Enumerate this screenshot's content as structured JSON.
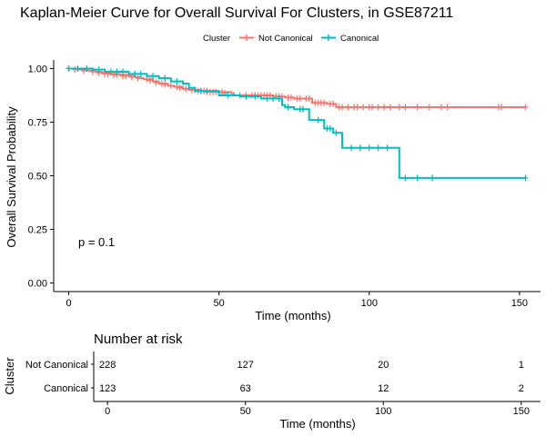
{
  "chart_data": [
    {
      "type": "line",
      "title": "Kaplan-Meier Curve for Overall Survival For Clusters, in GSE87211",
      "xlabel": "Time (months)",
      "ylabel": "Overall Survival Probability",
      "xlim": [
        -5,
        157
      ],
      "ylim": [
        -0.04,
        1.04
      ],
      "x_ticks": [
        0,
        50,
        100,
        150
      ],
      "y_ticks": [
        0.0,
        0.25,
        0.5,
        0.75,
        1.0
      ],
      "y_tick_labels": [
        "0.00",
        "0.25",
        "0.50",
        "0.75",
        "1.00"
      ],
      "grid": false,
      "legend": {
        "title": "Cluster",
        "position": "top",
        "entries": [
          {
            "name": "Not Canonical",
            "color": "#F8766D"
          },
          {
            "name": "Canonical",
            "color": "#00BFC4"
          }
        ]
      },
      "annotation": "p = 0.1",
      "series": [
        {
          "name": "Not Canonical",
          "color": "#F8766D",
          "steps": [
            [
              0,
              1.0
            ],
            [
              3,
              0.995
            ],
            [
              6,
              0.99
            ],
            [
              9,
              0.985
            ],
            [
              11,
              0.98
            ],
            [
              14,
              0.975
            ],
            [
              17,
              0.97
            ],
            [
              20,
              0.965
            ],
            [
              22,
              0.96
            ],
            [
              24,
              0.955
            ],
            [
              25,
              0.95
            ],
            [
              28,
              0.94
            ],
            [
              30,
              0.93
            ],
            [
              33,
              0.92
            ],
            [
              35,
              0.915
            ],
            [
              38,
              0.905
            ],
            [
              40,
              0.9
            ],
            [
              44,
              0.895
            ],
            [
              50,
              0.89
            ],
            [
              54,
              0.885
            ],
            [
              55,
              0.875
            ],
            [
              68,
              0.87
            ],
            [
              72,
              0.865
            ],
            [
              75,
              0.86
            ],
            [
              81,
              0.84
            ],
            [
              86,
              0.835
            ],
            [
              89,
              0.82
            ],
            [
              152,
              0.82
            ]
          ],
          "censored": [
            [
              0,
              1.0
            ],
            [
              2,
              0.995
            ],
            [
              5,
              0.99
            ],
            [
              8,
              0.985
            ],
            [
              10,
              0.98
            ],
            [
              12,
              0.975
            ],
            [
              13,
              0.975
            ],
            [
              15,
              0.97
            ],
            [
              16,
              0.97
            ],
            [
              18,
              0.965
            ],
            [
              19,
              0.965
            ],
            [
              21,
              0.96
            ],
            [
              23,
              0.955
            ],
            [
              26,
              0.95
            ],
            [
              27,
              0.945
            ],
            [
              29,
              0.935
            ],
            [
              31,
              0.93
            ],
            [
              32,
              0.925
            ],
            [
              34,
              0.92
            ],
            [
              36,
              0.915
            ],
            [
              37,
              0.91
            ],
            [
              39,
              0.905
            ],
            [
              41,
              0.9
            ],
            [
              42,
              0.9
            ],
            [
              43,
              0.895
            ],
            [
              45,
              0.895
            ],
            [
              46,
              0.89
            ],
            [
              47,
              0.89
            ],
            [
              48,
              0.89
            ],
            [
              49,
              0.89
            ],
            [
              51,
              0.89
            ],
            [
              52,
              0.885
            ],
            [
              57,
              0.875
            ],
            [
              59,
              0.875
            ],
            [
              61,
              0.875
            ],
            [
              62,
              0.875
            ],
            [
              63,
              0.875
            ],
            [
              64,
              0.875
            ],
            [
              65,
              0.875
            ],
            [
              66,
              0.875
            ],
            [
              67,
              0.875
            ],
            [
              69,
              0.87
            ],
            [
              70,
              0.87
            ],
            [
              71,
              0.87
            ],
            [
              73,
              0.865
            ],
            [
              74,
              0.865
            ],
            [
              76,
              0.86
            ],
            [
              77,
              0.86
            ],
            [
              79,
              0.86
            ],
            [
              80,
              0.86
            ],
            [
              82,
              0.84
            ],
            [
              83,
              0.84
            ],
            [
              84,
              0.84
            ],
            [
              85,
              0.84
            ],
            [
              87,
              0.835
            ],
            [
              88,
              0.835
            ],
            [
              90,
              0.82
            ],
            [
              91,
              0.82
            ],
            [
              93,
              0.82
            ],
            [
              95,
              0.82
            ],
            [
              96,
              0.82
            ],
            [
              98,
              0.82
            ],
            [
              100,
              0.82
            ],
            [
              101,
              0.82
            ],
            [
              103,
              0.82
            ],
            [
              105,
              0.82
            ],
            [
              107,
              0.82
            ],
            [
              110,
              0.82
            ],
            [
              112,
              0.82
            ],
            [
              116,
              0.82
            ],
            [
              120,
              0.82
            ],
            [
              124,
              0.82
            ],
            [
              126,
              0.82
            ],
            [
              143,
              0.82
            ],
            [
              144,
              0.82
            ],
            [
              152,
              0.82
            ]
          ]
        },
        {
          "name": "Canonical",
          "color": "#00BFC4",
          "steps": [
            [
              0,
              1.0
            ],
            [
              8,
              0.995
            ],
            [
              12,
              0.985
            ],
            [
              20,
              0.975
            ],
            [
              26,
              0.965
            ],
            [
              30,
              0.955
            ],
            [
              34,
              0.94
            ],
            [
              38,
              0.93
            ],
            [
              40,
              0.91
            ],
            [
              42,
              0.895
            ],
            [
              50,
              0.875
            ],
            [
              57,
              0.87
            ],
            [
              64,
              0.86
            ],
            [
              71,
              0.83
            ],
            [
              72,
              0.82
            ],
            [
              75,
              0.81
            ],
            [
              80,
              0.76
            ],
            [
              85,
              0.72
            ],
            [
              88,
              0.7
            ],
            [
              91,
              0.63
            ],
            [
              110,
              0.49
            ],
            [
              152,
              0.49
            ]
          ],
          "censored": [
            [
              0,
              1.0
            ],
            [
              3,
              1.0
            ],
            [
              6,
              1.0
            ],
            [
              10,
              0.995
            ],
            [
              14,
              0.985
            ],
            [
              16,
              0.985
            ],
            [
              18,
              0.985
            ],
            [
              22,
              0.975
            ],
            [
              24,
              0.975
            ],
            [
              28,
              0.965
            ],
            [
              32,
              0.955
            ],
            [
              36,
              0.94
            ],
            [
              44,
              0.895
            ],
            [
              46,
              0.895
            ],
            [
              53,
              0.875
            ],
            [
              59,
              0.87
            ],
            [
              62,
              0.87
            ],
            [
              66,
              0.86
            ],
            [
              68,
              0.86
            ],
            [
              70,
              0.86
            ],
            [
              73,
              0.82
            ],
            [
              77,
              0.81
            ],
            [
              78,
              0.81
            ],
            [
              83,
              0.76
            ],
            [
              86,
              0.72
            ],
            [
              87,
              0.72
            ],
            [
              89,
              0.7
            ],
            [
              94,
              0.63
            ],
            [
              97,
              0.63
            ],
            [
              100,
              0.63
            ],
            [
              103,
              0.63
            ],
            [
              106,
              0.63
            ],
            [
              112,
              0.49
            ],
            [
              116,
              0.49
            ],
            [
              121,
              0.49
            ],
            [
              152,
              0.49
            ]
          ]
        }
      ]
    },
    {
      "type": "table",
      "title": "Number at risk",
      "xlabel": "Time (months)",
      "ylabel": "Cluster",
      "xlim": [
        -5,
        157
      ],
      "x_ticks": [
        0,
        50,
        100,
        150
      ],
      "rows": [
        {
          "name": "Not Canonical",
          "color": "#F8766D",
          "values": [
            228,
            127,
            20,
            1
          ]
        },
        {
          "name": "Canonical",
          "color": "#00BFC4",
          "values": [
            123,
            63,
            12,
            2
          ]
        }
      ]
    }
  ]
}
